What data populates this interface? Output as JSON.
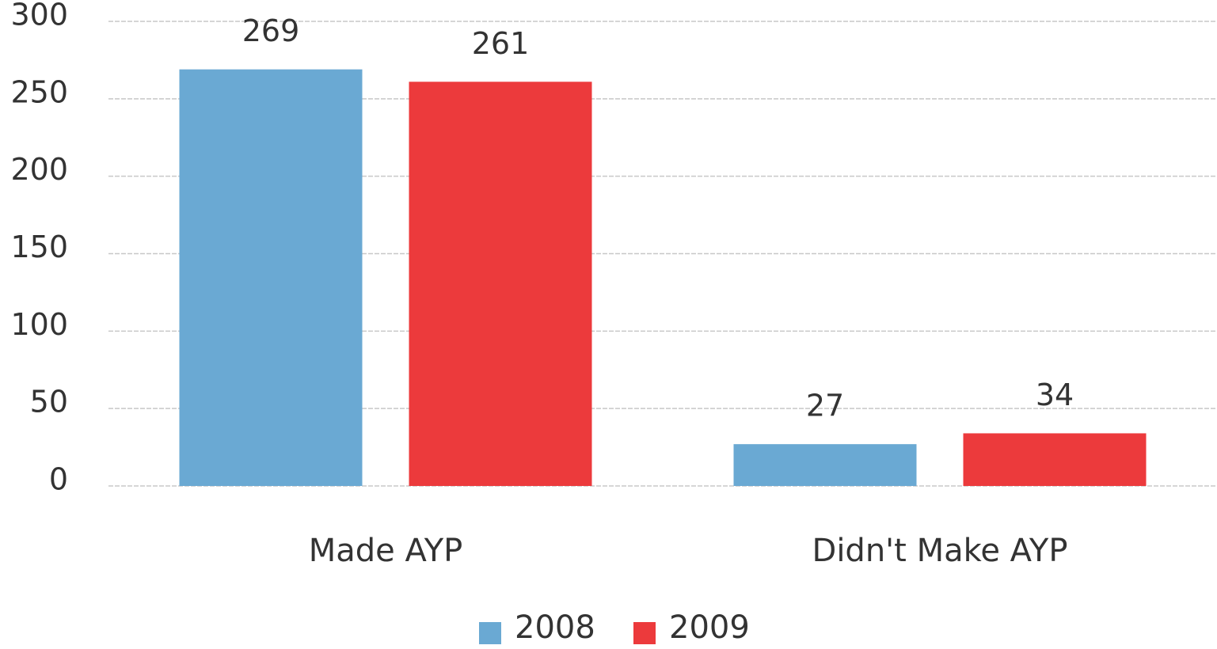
{
  "chart_data": {
    "type": "bar",
    "categories": [
      "Made AYP",
      "Didn't Make AYP"
    ],
    "series": [
      {
        "name": "2008",
        "color": "#6aa9d3",
        "values": [
          269,
          27
        ]
      },
      {
        "name": "2009",
        "color": "#ec3a3c",
        "values": [
          261,
          34
        ]
      }
    ],
    "ylim": [
      0,
      300
    ],
    "yticks": [
      0,
      50,
      100,
      150,
      200,
      250,
      300
    ],
    "grid": true,
    "legend": "bottom"
  }
}
